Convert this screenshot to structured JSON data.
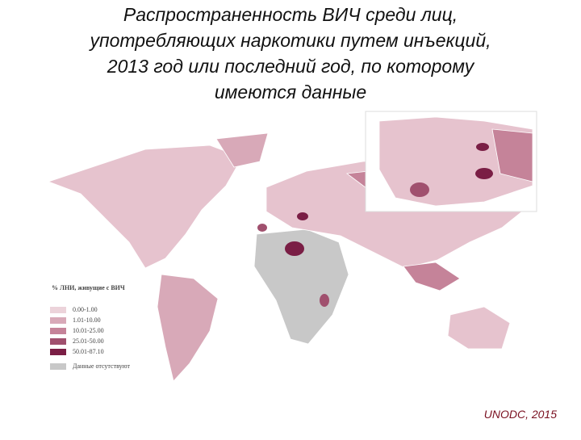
{
  "title": [
    "Распространенность ВИЧ среди лиц,",
    "употребляющих наркотики путем инъекций,",
    "2013 год или последний год, по которому",
    "имеются данные"
  ],
  "legend": {
    "title": "% ЛНИ, живущие с ВИЧ",
    "items": [
      "0.00-1.00",
      "1.01-10.00",
      "10.01-25.00",
      "25.01-50.00",
      "50.01-87.10",
      "Данные отсутствуют"
    ]
  },
  "source": "UNODC, 2015"
}
